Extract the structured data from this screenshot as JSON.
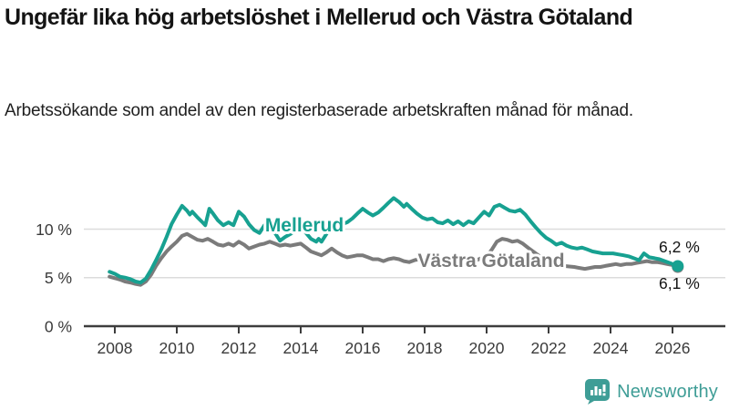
{
  "header": {
    "title": "Ungefär lika hög arbetslöshet i Mellerud och Västra Götaland",
    "subtitle": "Arbetssökande som andel av den registerbaserade arbetskraften månad för månad."
  },
  "footer": {
    "brand": "Newsworthy",
    "brand_color": "#3e9d96"
  },
  "chart_data": {
    "type": "line",
    "title": "Ungefär lika hög arbetslöshet i Mellerud och Västra Götaland",
    "subtitle": "Arbetssökande som andel av den registerbaserade arbetskraften månad för månad.",
    "unit": "%",
    "grid": "horizontal-only",
    "legend_position": "inline-labels",
    "xlim": [
      2007.8,
      2026.3
    ],
    "ylim": [
      0,
      15.3
    ],
    "x_ticks": [
      2008,
      2010,
      2012,
      2014,
      2016,
      2018,
      2020,
      2022,
      2024,
      2026
    ],
    "y_ticks": [
      {
        "value": 0,
        "label": "0 %"
      },
      {
        "value": 5,
        "label": "5 %"
      },
      {
        "value": 10,
        "label": "10 %"
      }
    ],
    "colors": {
      "axis": "#3d3d3d",
      "gridline": "#dcdcdc",
      "tick_label": "#3a3a3a"
    },
    "series": [
      {
        "name": "Mellerud",
        "color": "#17a191",
        "end_label": "6,2 %",
        "points": [
          [
            2007.83,
            5.6
          ],
          [
            2008.0,
            5.4
          ],
          [
            2008.17,
            5.1
          ],
          [
            2008.33,
            5.0
          ],
          [
            2008.5,
            4.85
          ],
          [
            2008.67,
            4.6
          ],
          [
            2008.83,
            4.5
          ],
          [
            2009.0,
            4.9
          ],
          [
            2009.17,
            5.8
          ],
          [
            2009.33,
            6.8
          ],
          [
            2009.5,
            7.9
          ],
          [
            2009.67,
            9.2
          ],
          [
            2009.83,
            10.5
          ],
          [
            2010.0,
            11.5
          ],
          [
            2010.17,
            12.4
          ],
          [
            2010.33,
            11.9
          ],
          [
            2010.42,
            11.5
          ],
          [
            2010.5,
            11.8
          ],
          [
            2010.67,
            11.2
          ],
          [
            2010.83,
            10.7
          ],
          [
            2010.92,
            10.4
          ],
          [
            2011.05,
            12.1
          ],
          [
            2011.17,
            11.6
          ],
          [
            2011.33,
            10.9
          ],
          [
            2011.5,
            10.4
          ],
          [
            2011.67,
            10.7
          ],
          [
            2011.83,
            10.4
          ],
          [
            2012.0,
            11.8
          ],
          [
            2012.17,
            11.3
          ],
          [
            2012.33,
            10.5
          ],
          [
            2012.5,
            9.9
          ],
          [
            2012.67,
            9.6
          ],
          [
            2012.83,
            10.4
          ],
          [
            2013.0,
            10.8
          ],
          [
            2013.17,
            9.6
          ],
          [
            2013.33,
            8.8
          ],
          [
            2013.5,
            9.2
          ],
          [
            2013.67,
            9.5
          ],
          [
            2013.83,
            9.9
          ],
          [
            2014.0,
            10.2
          ],
          [
            2014.17,
            9.6
          ],
          [
            2014.33,
            9.0
          ],
          [
            2014.5,
            8.7
          ],
          [
            2014.58,
            9.0
          ],
          [
            2014.67,
            8.7
          ],
          [
            2014.83,
            9.5
          ],
          [
            2015.0,
            10.3
          ],
          [
            2015.17,
            10.1
          ],
          [
            2015.33,
            10.5
          ],
          [
            2015.5,
            10.7
          ],
          [
            2015.67,
            11.1
          ],
          [
            2015.83,
            11.6
          ],
          [
            2016.0,
            12.1
          ],
          [
            2016.17,
            11.7
          ],
          [
            2016.33,
            11.4
          ],
          [
            2016.5,
            11.7
          ],
          [
            2016.67,
            12.2
          ],
          [
            2016.83,
            12.7
          ],
          [
            2017.0,
            13.2
          ],
          [
            2017.17,
            12.8
          ],
          [
            2017.33,
            12.3
          ],
          [
            2017.42,
            12.6
          ],
          [
            2017.58,
            12.1
          ],
          [
            2017.75,
            11.6
          ],
          [
            2017.92,
            11.2
          ],
          [
            2018.08,
            11.0
          ],
          [
            2018.25,
            11.1
          ],
          [
            2018.42,
            10.7
          ],
          [
            2018.58,
            10.6
          ],
          [
            2018.75,
            10.9
          ],
          [
            2018.92,
            10.5
          ],
          [
            2019.08,
            10.8
          ],
          [
            2019.25,
            10.4
          ],
          [
            2019.42,
            10.8
          ],
          [
            2019.58,
            10.6
          ],
          [
            2019.75,
            11.2
          ],
          [
            2019.92,
            11.8
          ],
          [
            2020.08,
            11.4
          ],
          [
            2020.25,
            12.3
          ],
          [
            2020.42,
            12.5
          ],
          [
            2020.58,
            12.2
          ],
          [
            2020.75,
            11.9
          ],
          [
            2020.92,
            11.8
          ],
          [
            2021.08,
            12.0
          ],
          [
            2021.25,
            11.5
          ],
          [
            2021.42,
            10.8
          ],
          [
            2021.58,
            10.2
          ],
          [
            2021.75,
            9.6
          ],
          [
            2021.92,
            9.1
          ],
          [
            2022.08,
            8.8
          ],
          [
            2022.25,
            8.4
          ],
          [
            2022.42,
            8.6
          ],
          [
            2022.58,
            8.3
          ],
          [
            2022.75,
            8.1
          ],
          [
            2022.92,
            8.0
          ],
          [
            2023.08,
            8.1
          ],
          [
            2023.25,
            7.9
          ],
          [
            2023.42,
            7.7
          ],
          [
            2023.58,
            7.6
          ],
          [
            2023.75,
            7.5
          ],
          [
            2023.92,
            7.5
          ],
          [
            2024.08,
            7.5
          ],
          [
            2024.25,
            7.4
          ],
          [
            2024.42,
            7.3
          ],
          [
            2024.58,
            7.2
          ],
          [
            2024.75,
            7.0
          ],
          [
            2024.92,
            6.8
          ],
          [
            2025.08,
            7.5
          ],
          [
            2025.25,
            7.1
          ],
          [
            2025.42,
            7.0
          ],
          [
            2025.58,
            6.9
          ],
          [
            2025.75,
            6.7
          ],
          [
            2025.92,
            6.5
          ],
          [
            2026.08,
            6.3
          ],
          [
            2026.17,
            6.2
          ]
        ]
      },
      {
        "name": "Västra Götaland",
        "color": "#7b7b7b",
        "end_label": "6,1 %",
        "points": [
          [
            2007.83,
            5.1
          ],
          [
            2008.0,
            4.95
          ],
          [
            2008.17,
            4.8
          ],
          [
            2008.33,
            4.6
          ],
          [
            2008.5,
            4.5
          ],
          [
            2008.67,
            4.35
          ],
          [
            2008.83,
            4.25
          ],
          [
            2009.0,
            4.6
          ],
          [
            2009.17,
            5.3
          ],
          [
            2009.33,
            6.2
          ],
          [
            2009.5,
            7.0
          ],
          [
            2009.67,
            7.7
          ],
          [
            2009.83,
            8.2
          ],
          [
            2010.0,
            8.7
          ],
          [
            2010.17,
            9.3
          ],
          [
            2010.33,
            9.5
          ],
          [
            2010.5,
            9.2
          ],
          [
            2010.67,
            8.9
          ],
          [
            2010.83,
            8.8
          ],
          [
            2011.0,
            9.0
          ],
          [
            2011.17,
            8.7
          ],
          [
            2011.33,
            8.4
          ],
          [
            2011.5,
            8.3
          ],
          [
            2011.67,
            8.5
          ],
          [
            2011.83,
            8.3
          ],
          [
            2012.0,
            8.7
          ],
          [
            2012.17,
            8.4
          ],
          [
            2012.33,
            8.0
          ],
          [
            2012.5,
            8.2
          ],
          [
            2012.67,
            8.4
          ],
          [
            2012.83,
            8.5
          ],
          [
            2013.0,
            8.7
          ],
          [
            2013.17,
            8.5
          ],
          [
            2013.33,
            8.3
          ],
          [
            2013.5,
            8.4
          ],
          [
            2013.67,
            8.3
          ],
          [
            2013.83,
            8.4
          ],
          [
            2014.0,
            8.5
          ],
          [
            2014.17,
            8.1
          ],
          [
            2014.33,
            7.7
          ],
          [
            2014.5,
            7.5
          ],
          [
            2014.67,
            7.3
          ],
          [
            2014.83,
            7.6
          ],
          [
            2015.0,
            8.0
          ],
          [
            2015.17,
            7.6
          ],
          [
            2015.33,
            7.3
          ],
          [
            2015.5,
            7.1
          ],
          [
            2015.67,
            7.2
          ],
          [
            2015.83,
            7.3
          ],
          [
            2016.0,
            7.3
          ],
          [
            2016.17,
            7.1
          ],
          [
            2016.33,
            6.9
          ],
          [
            2016.5,
            6.9
          ],
          [
            2016.67,
            6.7
          ],
          [
            2016.83,
            6.9
          ],
          [
            2017.0,
            7.0
          ],
          [
            2017.17,
            6.9
          ],
          [
            2017.33,
            6.7
          ],
          [
            2017.5,
            6.6
          ],
          [
            2017.67,
            6.8
          ],
          [
            2017.83,
            6.9
          ],
          [
            2018.0,
            6.8
          ],
          [
            2018.17,
            6.7
          ],
          [
            2018.33,
            6.6
          ],
          [
            2018.5,
            6.5
          ],
          [
            2018.67,
            6.6
          ],
          [
            2018.83,
            6.7
          ],
          [
            2019.0,
            6.8
          ],
          [
            2019.17,
            6.7
          ],
          [
            2019.33,
            6.6
          ],
          [
            2019.5,
            6.7
          ],
          [
            2019.67,
            6.8
          ],
          [
            2019.83,
            7.0
          ],
          [
            2020.0,
            7.2
          ],
          [
            2020.17,
            7.9
          ],
          [
            2020.33,
            8.7
          ],
          [
            2020.5,
            9.0
          ],
          [
            2020.67,
            8.9
          ],
          [
            2020.83,
            8.7
          ],
          [
            2021.0,
            8.8
          ],
          [
            2021.17,
            8.5
          ],
          [
            2021.33,
            8.1
          ],
          [
            2021.5,
            7.7
          ],
          [
            2021.67,
            7.3
          ],
          [
            2021.83,
            7.0
          ],
          [
            2022.0,
            6.7
          ],
          [
            2022.17,
            6.5
          ],
          [
            2022.33,
            6.3
          ],
          [
            2022.5,
            6.2
          ],
          [
            2022.67,
            6.15
          ],
          [
            2022.83,
            6.1
          ],
          [
            2023.0,
            6.0
          ],
          [
            2023.17,
            5.9
          ],
          [
            2023.33,
            6.0
          ],
          [
            2023.5,
            6.1
          ],
          [
            2023.67,
            6.1
          ],
          [
            2023.83,
            6.2
          ],
          [
            2024.0,
            6.3
          ],
          [
            2024.17,
            6.4
          ],
          [
            2024.33,
            6.3
          ],
          [
            2024.5,
            6.4
          ],
          [
            2024.67,
            6.4
          ],
          [
            2024.83,
            6.5
          ],
          [
            2025.0,
            6.6
          ],
          [
            2025.17,
            6.7
          ],
          [
            2025.33,
            6.6
          ],
          [
            2025.5,
            6.6
          ],
          [
            2025.67,
            6.5
          ],
          [
            2025.83,
            6.4
          ],
          [
            2026.0,
            6.3
          ],
          [
            2026.17,
            6.1
          ]
        ]
      }
    ]
  }
}
